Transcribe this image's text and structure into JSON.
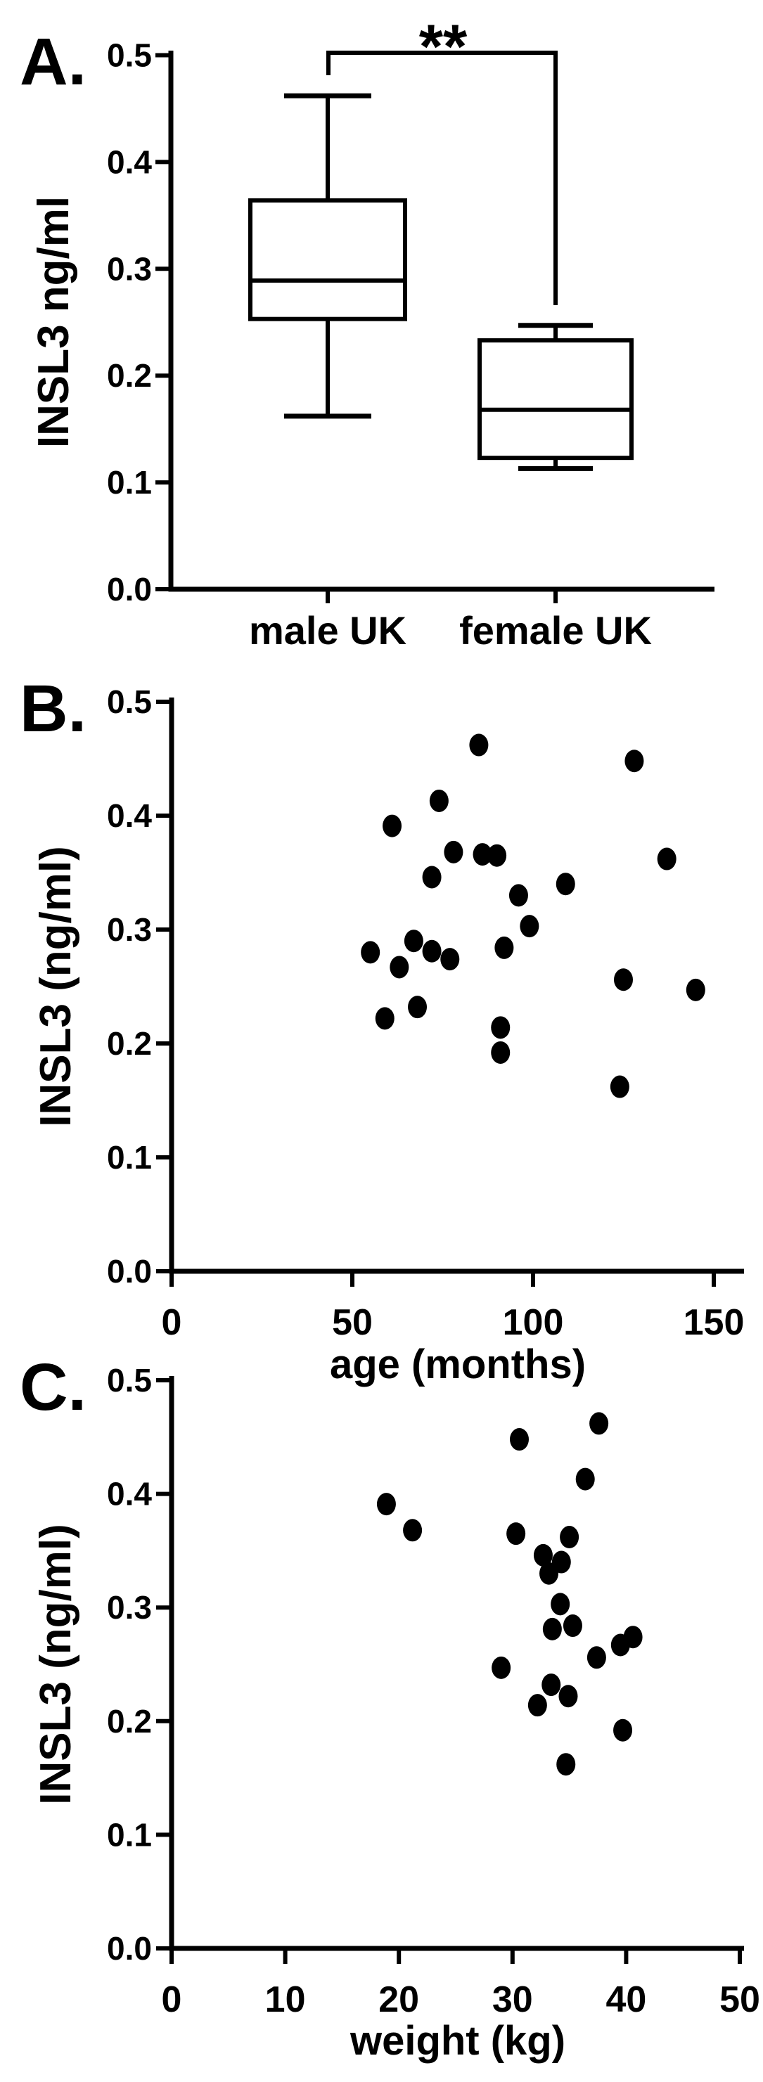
{
  "figure": {
    "background": "#ffffff",
    "ink_color": "#000000",
    "panel_letters": [
      "A.",
      "B.",
      "C."
    ]
  },
  "chart_data": [
    {
      "type": "box",
      "panel_letter": "A.",
      "ylabel": "INSL3 ng/ml",
      "ylim": [
        0.0,
        0.5
      ],
      "yticks": [
        0.0,
        0.1,
        0.2,
        0.3,
        0.4,
        0.5
      ],
      "yticklabels": [
        "0.0",
        "0.1",
        "0.2",
        "0.3",
        "0.4",
        "0.5"
      ],
      "categories": [
        "male UK",
        "female UK"
      ],
      "series": [
        {
          "name": "male UK",
          "min": 0.162,
          "q1": 0.253,
          "median": 0.289,
          "q3": 0.364,
          "max": 0.462
        },
        {
          "name": "female UK",
          "min": 0.113,
          "q1": 0.123,
          "median": 0.168,
          "q3": 0.233,
          "max": 0.247
        }
      ],
      "significance": {
        "label": "**",
        "between": [
          "male UK",
          "female UK"
        ]
      },
      "grid": false,
      "legend": "none"
    },
    {
      "type": "scatter",
      "panel_letter": "B.",
      "xlabel": "age (months)",
      "ylabel": "INSL3 (ng/ml)",
      "xlim": [
        0,
        158
      ],
      "ylim": [
        0.0,
        0.5
      ],
      "xticks": [
        0,
        50,
        100,
        150
      ],
      "xticklabels": [
        "0",
        "50",
        "100",
        "150"
      ],
      "yticks": [
        0.0,
        0.1,
        0.2,
        0.3,
        0.4,
        0.5
      ],
      "yticklabels": [
        "0.0",
        "0.1",
        "0.2",
        "0.3",
        "0.4",
        "0.5"
      ],
      "points": [
        [
          85,
          0.462
        ],
        [
          128,
          0.448
        ],
        [
          74,
          0.413
        ],
        [
          61,
          0.391
        ],
        [
          78,
          0.368
        ],
        [
          86,
          0.366
        ],
        [
          90,
          0.365
        ],
        [
          137,
          0.362
        ],
        [
          72,
          0.346
        ],
        [
          109,
          0.34
        ],
        [
          96,
          0.33
        ],
        [
          99,
          0.303
        ],
        [
          67,
          0.29
        ],
        [
          92,
          0.284
        ],
        [
          72,
          0.281
        ],
        [
          55,
          0.28
        ],
        [
          77,
          0.274
        ],
        [
          63,
          0.267
        ],
        [
          125,
          0.256
        ],
        [
          145,
          0.247
        ],
        [
          68,
          0.232
        ],
        [
          59,
          0.222
        ],
        [
          91,
          0.214
        ],
        [
          91,
          0.192
        ],
        [
          124,
          0.162
        ]
      ],
      "grid": false,
      "legend": "none"
    },
    {
      "type": "scatter",
      "panel_letter": "C.",
      "xlabel": "weight (kg)",
      "ylabel": "INSL3 (ng/ml)",
      "xlim": [
        0,
        50
      ],
      "ylim": [
        0.0,
        0.5
      ],
      "xticks": [
        0,
        10,
        20,
        30,
        40,
        50
      ],
      "xticklabels": [
        "0",
        "10",
        "20",
        "30",
        "40",
        "50"
      ],
      "yticks": [
        0.0,
        0.1,
        0.2,
        0.3,
        0.4,
        0.5
      ],
      "yticklabels": [
        "0.0",
        "0.1",
        "0.2",
        "0.3",
        "0.4",
        "0.5"
      ],
      "points": [
        [
          37.6,
          0.462
        ],
        [
          30.6,
          0.448
        ],
        [
          36.4,
          0.413
        ],
        [
          18.9,
          0.391
        ],
        [
          21.2,
          0.368
        ],
        [
          30.3,
          0.365
        ],
        [
          35.0,
          0.362
        ],
        [
          32.7,
          0.346
        ],
        [
          34.3,
          0.34
        ],
        [
          33.2,
          0.33
        ],
        [
          34.2,
          0.303
        ],
        [
          35.3,
          0.284
        ],
        [
          33.5,
          0.281
        ],
        [
          40.6,
          0.274
        ],
        [
          39.5,
          0.267
        ],
        [
          37.4,
          0.256
        ],
        [
          29.0,
          0.247
        ],
        [
          33.4,
          0.232
        ],
        [
          34.9,
          0.222
        ],
        [
          32.2,
          0.214
        ],
        [
          39.7,
          0.192
        ],
        [
          34.7,
          0.162
        ]
      ],
      "grid": false,
      "legend": "none"
    }
  ]
}
